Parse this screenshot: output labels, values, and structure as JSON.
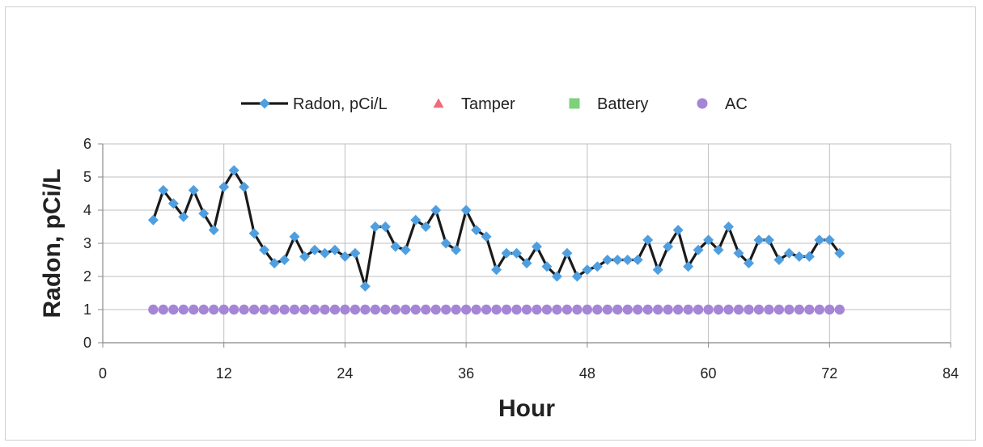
{
  "chart_data": {
    "type": "line",
    "xlabel": "Hour",
    "ylabel": "Radon, pCi/L",
    "xlim": [
      0,
      84
    ],
    "ylim": [
      0,
      6
    ],
    "xticks": [
      0,
      12,
      24,
      36,
      48,
      60,
      72,
      84
    ],
    "yticks": [
      0,
      1,
      2,
      3,
      4,
      5,
      6
    ],
    "grid": true,
    "legend_position": "top",
    "colors": {
      "radon_line": "#1a1a1a",
      "radon_marker": "#4f9fe0",
      "tamper": "#ef6b7a",
      "battery": "#7fd07a",
      "ac": "#a585d6",
      "grid": "#bfbfbf"
    },
    "series": [
      {
        "name": "Radon, pCi/L",
        "marker": "diamond",
        "x": [
          5,
          6,
          7,
          8,
          9,
          10,
          11,
          12,
          13,
          14,
          15,
          16,
          17,
          18,
          19,
          20,
          21,
          22,
          23,
          24,
          25,
          26,
          27,
          28,
          29,
          30,
          31,
          32,
          33,
          34,
          35,
          36,
          37,
          38,
          39,
          40,
          41,
          42,
          43,
          44,
          45,
          46,
          47,
          48,
          49,
          50,
          51,
          52,
          53,
          54,
          55,
          56,
          57,
          58,
          59,
          60,
          61,
          62,
          63,
          64,
          65,
          66,
          67,
          68,
          69,
          70,
          71,
          72,
          73
        ],
        "y": [
          3.7,
          4.6,
          4.2,
          3.8,
          4.6,
          3.9,
          3.4,
          4.7,
          5.2,
          4.7,
          3.3,
          2.8,
          2.4,
          2.5,
          3.2,
          2.6,
          2.8,
          2.7,
          2.8,
          2.6,
          2.7,
          1.7,
          3.5,
          3.5,
          2.9,
          2.8,
          3.7,
          3.5,
          4.0,
          3.0,
          2.8,
          4.0,
          3.4,
          3.2,
          2.2,
          2.7,
          2.7,
          2.4,
          2.9,
          2.3,
          2.0,
          2.7,
          2.0,
          2.2,
          2.3,
          2.5,
          2.5,
          2.5,
          2.5,
          3.1,
          2.2,
          2.9,
          3.4,
          2.3,
          2.8,
          3.1,
          2.8,
          3.5,
          2.7,
          2.4,
          3.1,
          3.1,
          2.5,
          2.7,
          2.6,
          2.6,
          3.1,
          3.1,
          2.7
        ]
      },
      {
        "name": "Tamper",
        "marker": "triangle",
        "x": [],
        "y": []
      },
      {
        "name": "Battery",
        "marker": "square",
        "x": [],
        "y": []
      },
      {
        "name": "AC",
        "marker": "circle",
        "x": [
          5,
          6,
          7,
          8,
          9,
          10,
          11,
          12,
          13,
          14,
          15,
          16,
          17,
          18,
          19,
          20,
          21,
          22,
          23,
          24,
          25,
          26,
          27,
          28,
          29,
          30,
          31,
          32,
          33,
          34,
          35,
          36,
          37,
          38,
          39,
          40,
          41,
          42,
          43,
          44,
          45,
          46,
          47,
          48,
          49,
          50,
          51,
          52,
          53,
          54,
          55,
          56,
          57,
          58,
          59,
          60,
          61,
          62,
          63,
          64,
          65,
          66,
          67,
          68,
          69,
          70,
          71,
          72,
          73
        ],
        "y": [
          1,
          1,
          1,
          1,
          1,
          1,
          1,
          1,
          1,
          1,
          1,
          1,
          1,
          1,
          1,
          1,
          1,
          1,
          1,
          1,
          1,
          1,
          1,
          1,
          1,
          1,
          1,
          1,
          1,
          1,
          1,
          1,
          1,
          1,
          1,
          1,
          1,
          1,
          1,
          1,
          1,
          1,
          1,
          1,
          1,
          1,
          1,
          1,
          1,
          1,
          1,
          1,
          1,
          1,
          1,
          1,
          1,
          1,
          1,
          1,
          1,
          1,
          1,
          1,
          1,
          1,
          1,
          1,
          1
        ]
      }
    ]
  }
}
